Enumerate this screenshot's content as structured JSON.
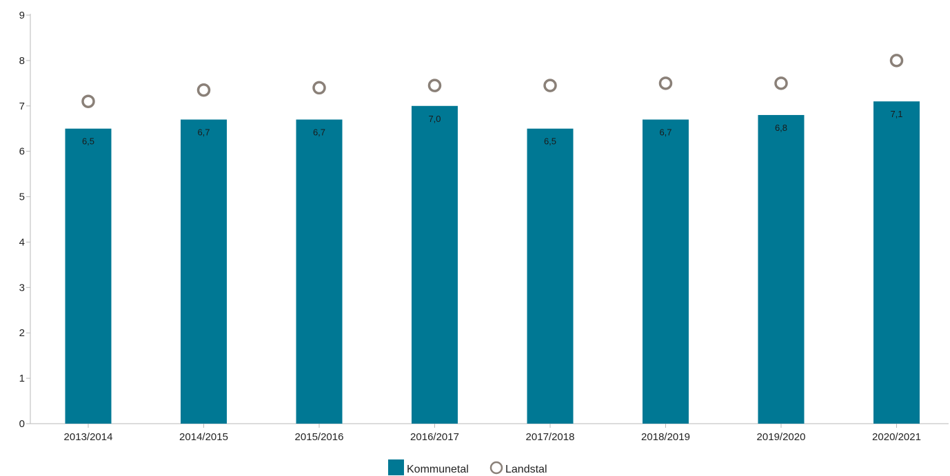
{
  "chart_data": {
    "type": "bar",
    "title": "",
    "xlabel": "",
    "ylabel": "",
    "ylim": [
      0,
      9
    ],
    "yticks": [
      "0",
      "1",
      "2",
      "3",
      "4",
      "5",
      "6",
      "7",
      "8",
      "9"
    ],
    "grid": false,
    "legend_position": "bottom-center",
    "categories": [
      "2013/2014",
      "2014/2015",
      "2015/2016",
      "2016/2017",
      "2017/2018",
      "2018/2019",
      "2019/2020",
      "2020/2021"
    ],
    "series": [
      {
        "name": "Kommunetal",
        "kind": "bar",
        "color": "#007894",
        "values": [
          6.5,
          6.7,
          6.7,
          7.0,
          6.5,
          6.7,
          6.8,
          7.1
        ],
        "labels": [
          "6,5",
          "6,7",
          "6,7",
          "7,0",
          "6,5",
          "6,7",
          "6,8",
          "7,1"
        ]
      },
      {
        "name": "Landstal",
        "kind": "marker",
        "color": "#8a8078",
        "values": [
          7.1,
          7.35,
          7.4,
          7.45,
          7.45,
          7.5,
          7.5,
          8.0
        ]
      }
    ]
  }
}
